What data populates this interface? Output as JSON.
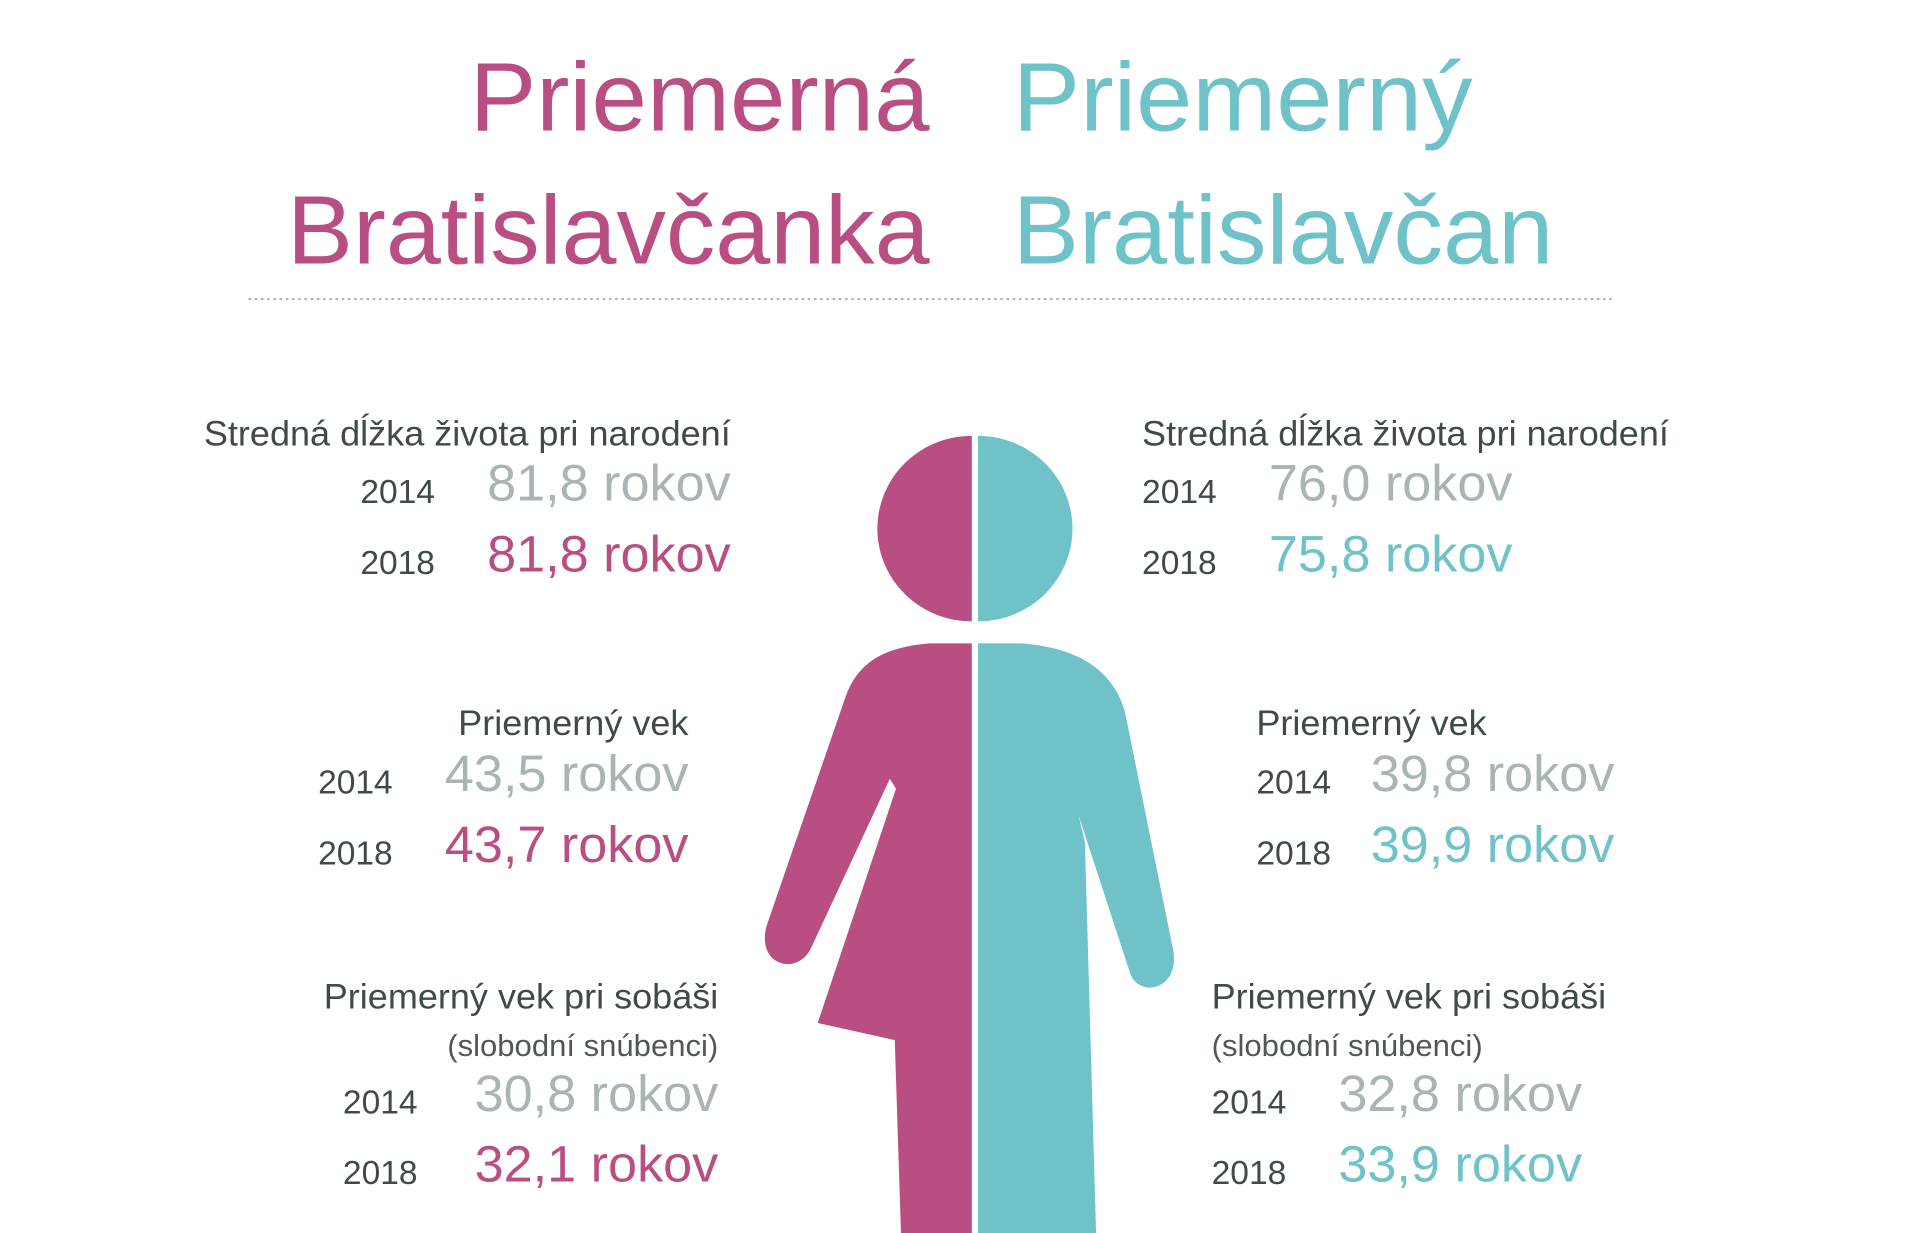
{
  "title": {
    "left": [
      "Priemerná",
      "Bratislavčanka"
    ],
    "right": [
      "Priemerný",
      "Bratislavčan"
    ]
  },
  "left": [
    {
      "label": "Stredná dĺžka života pri narodení",
      "rows": [
        {
          "year": "2014",
          "value": "81,8 rokov"
        },
        {
          "year": "2018",
          "value": "81,8 rokov"
        }
      ]
    },
    {
      "label": "Priemerný vek",
      "rows": [
        {
          "year": "2014",
          "value": "43,5 rokov"
        },
        {
          "year": "2018",
          "value": "43,7 rokov"
        }
      ]
    },
    {
      "label": "Priemerný vek pri sobáši",
      "note": "(slobodní snúbenci)",
      "rows": [
        {
          "year": "2014",
          "value": "30,8 rokov"
        },
        {
          "year": "2018",
          "value": "32,1 rokov"
        }
      ]
    }
  ],
  "right": [
    {
      "label": "Stredná dĺžka života pri narodení",
      "rows": [
        {
          "year": "2014",
          "value": "76,0 rokov"
        },
        {
          "year": "2018",
          "value": "75,8 rokov"
        }
      ]
    },
    {
      "label": "Priemerný vek",
      "rows": [
        {
          "year": "2014",
          "value": "39,8 rokov"
        },
        {
          "year": "2018",
          "value": "39,9 rokov"
        }
      ]
    },
    {
      "label": "Priemerný vek pri sobáši",
      "note": "(slobodní snúbenci)",
      "rows": [
        {
          "year": "2014",
          "value": "32,8 rokov"
        },
        {
          "year": "2018",
          "value": "33,9 rokov"
        }
      ]
    }
  ]
}
